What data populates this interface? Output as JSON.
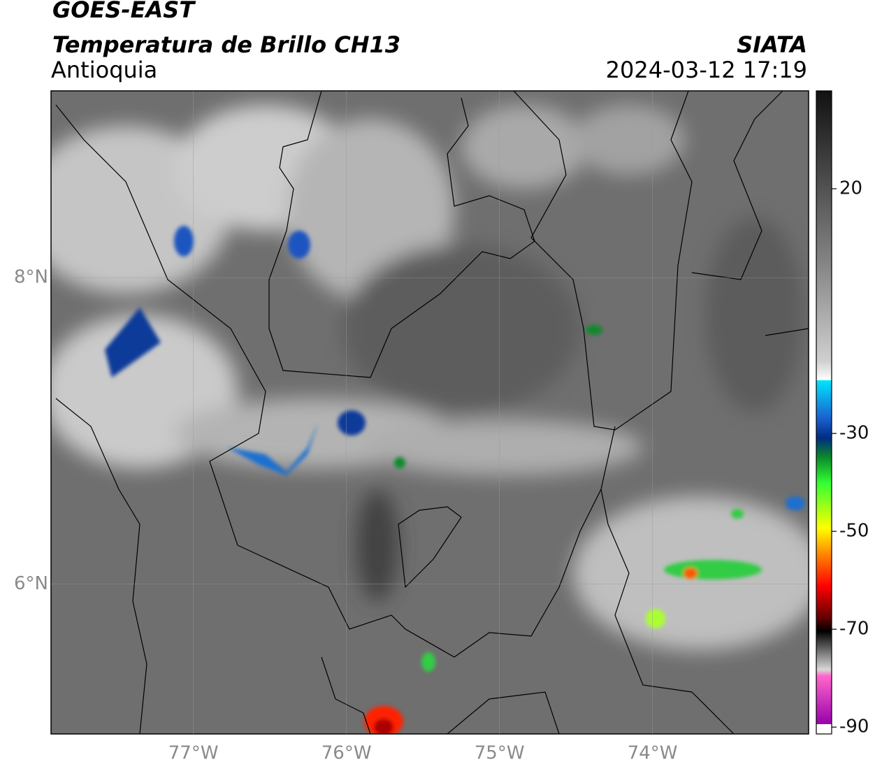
{
  "header": {
    "title": "GOES-EAST",
    "subtitle": "Temperatura de Brillo CH13",
    "region": "Antioquia",
    "source": "SIATA",
    "datetime": "2024-03-12 17:19"
  },
  "map": {
    "xlim": [
      -77.93,
      -72.98
    ],
    "ylim": [
      5.02,
      9.22
    ],
    "xticks": [
      {
        "value": -77,
        "label": "77°W"
      },
      {
        "value": -76,
        "label": "76°W"
      },
      {
        "value": -75,
        "label": "75°W"
      },
      {
        "value": -74,
        "label": "74°W"
      }
    ],
    "yticks": [
      {
        "value": 8,
        "label": "8°N"
      },
      {
        "value": 6,
        "label": "6°N"
      }
    ],
    "grid": true
  },
  "colorbar": {
    "lim": [
      -91.4,
      40
    ],
    "ticks": [
      20,
      -30,
      -50,
      -70,
      -90
    ]
  }
}
